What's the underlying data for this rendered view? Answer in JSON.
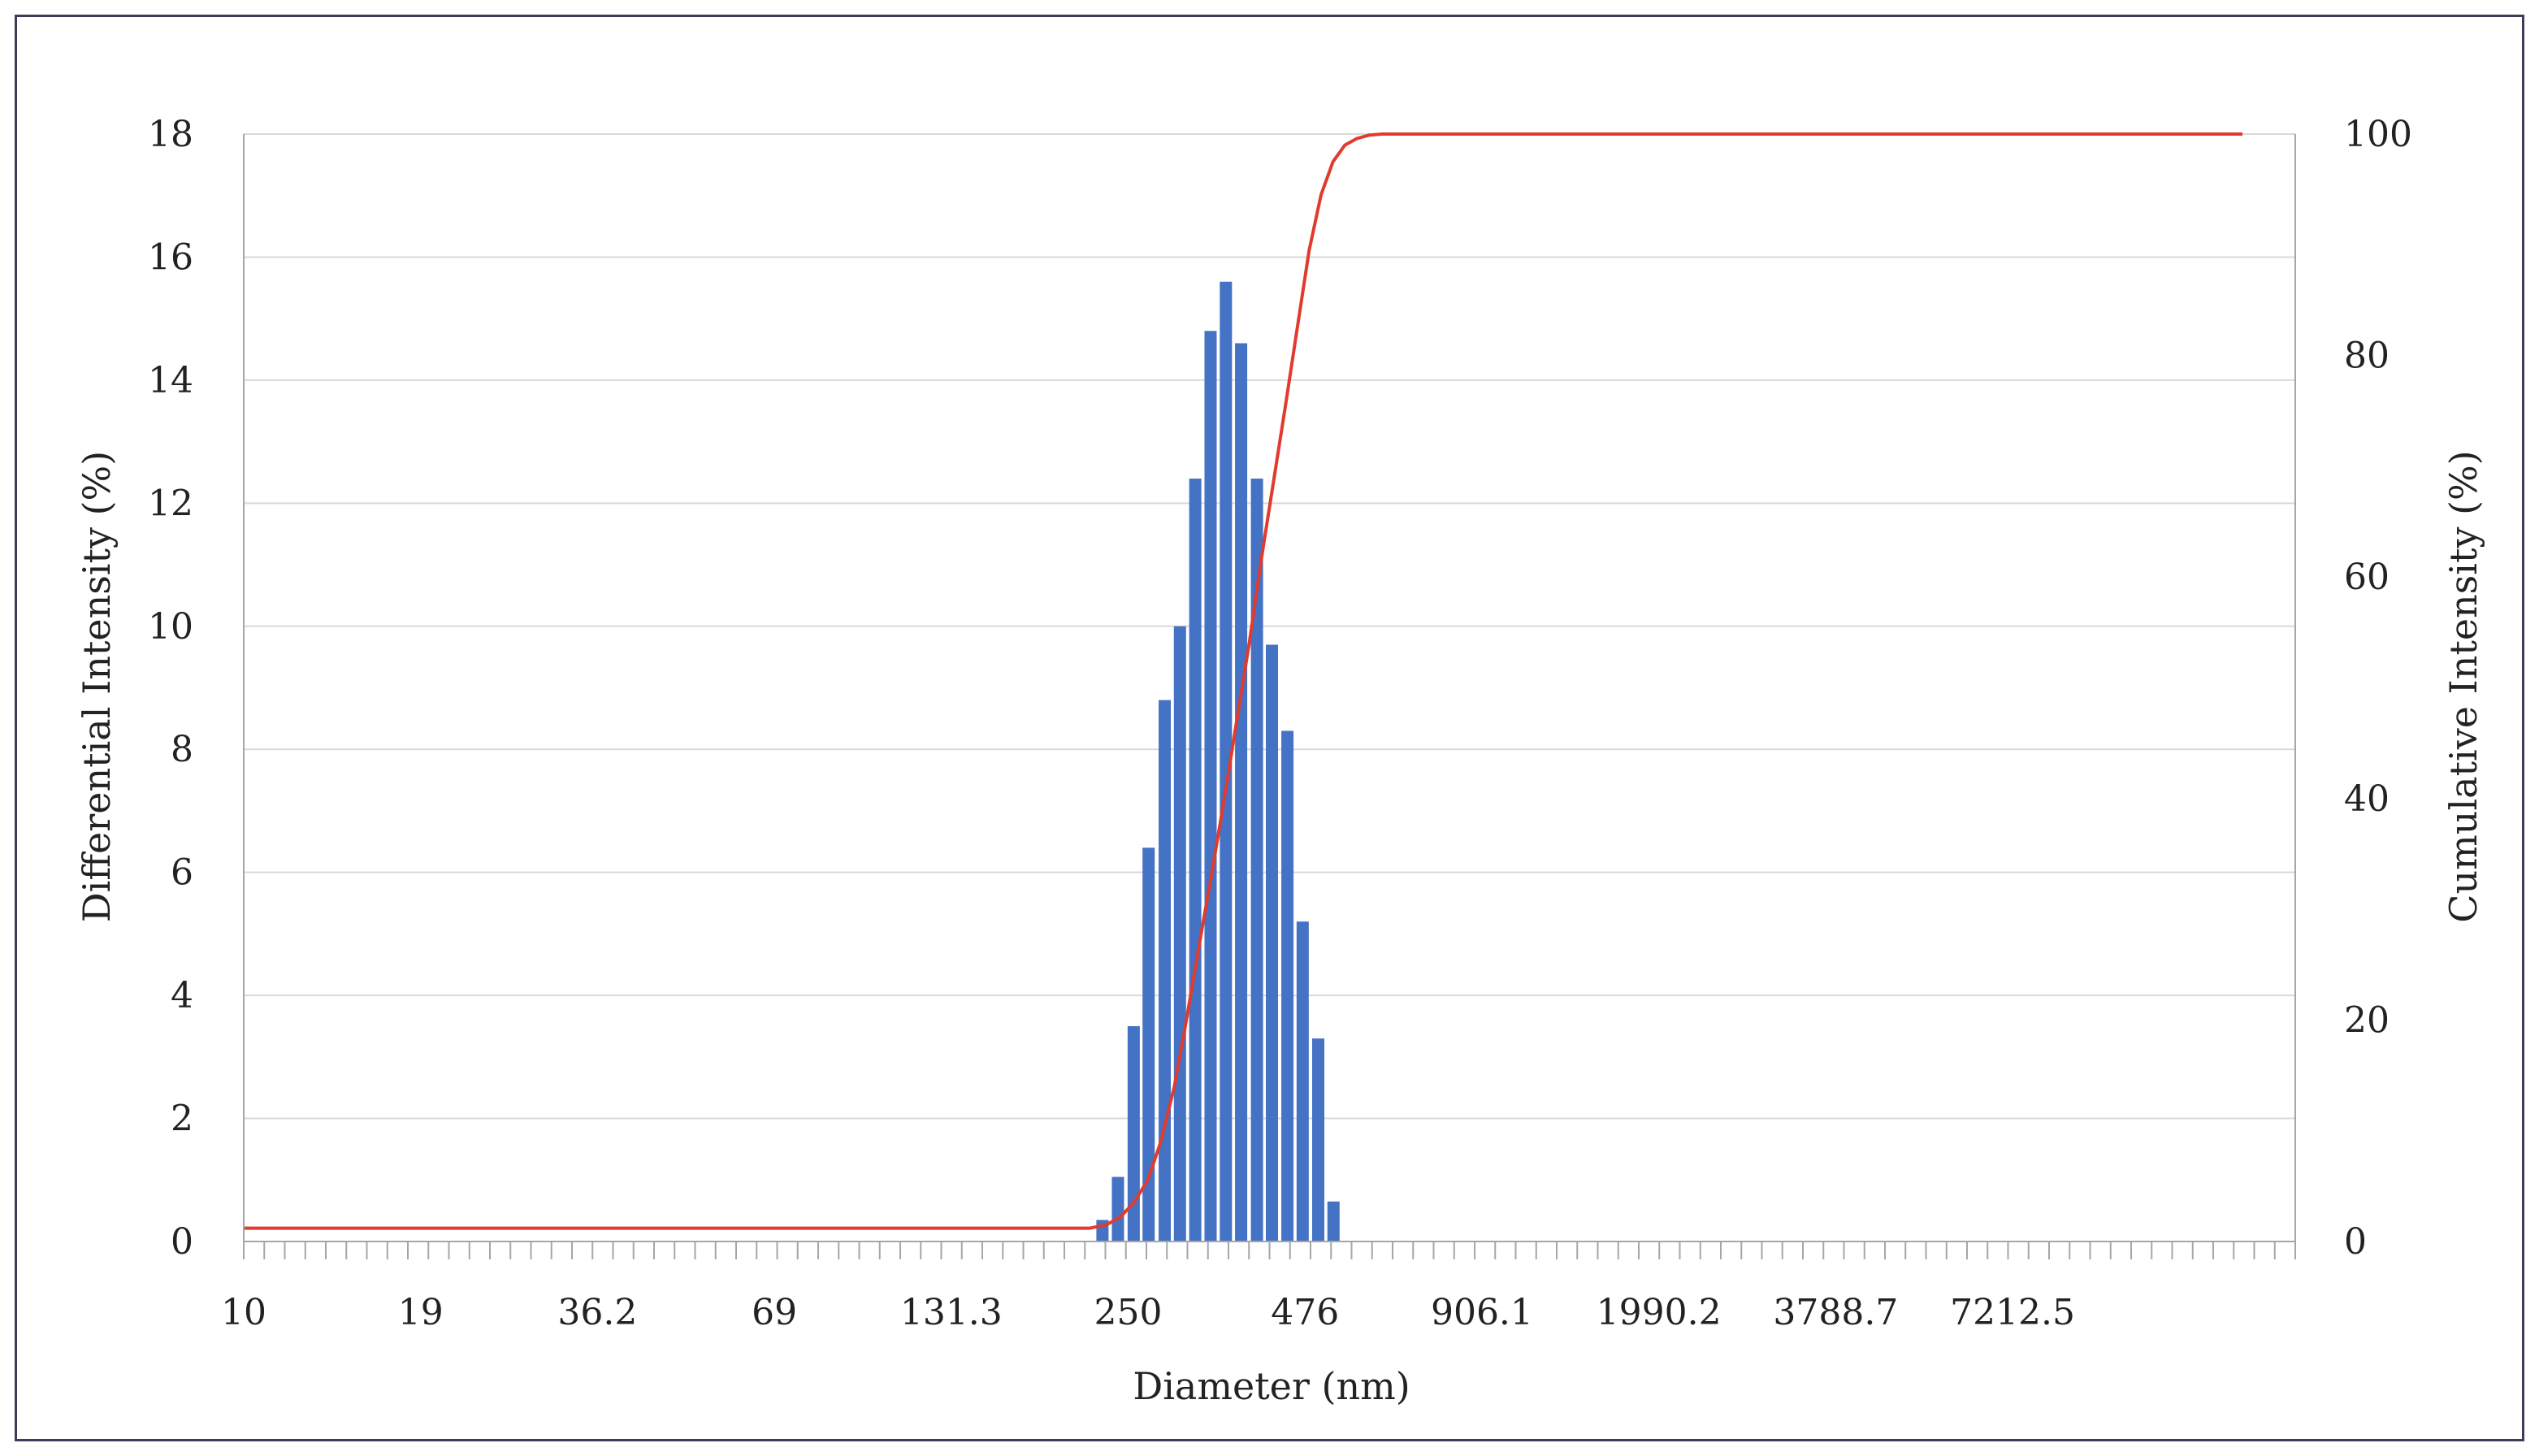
{
  "chart_data": {
    "type": "bar",
    "title": "",
    "xlabel": "Diameter (nm)",
    "ylabel": "Differential Intensity (%)",
    "y2label": "Cumulative Intensity (%)",
    "x_scale": "log",
    "xlim": [
      10,
      17000
    ],
    "ylim": [
      0,
      18
    ],
    "y2lim": [
      0,
      100
    ],
    "x_tick_labels": [
      "10",
      "19",
      "36.2",
      "69",
      "131.3",
      "250",
      "476",
      "906.1",
      "1990.2",
      "3788.7",
      "7212.5"
    ],
    "y_ticks": [
      0,
      2,
      4,
      6,
      8,
      10,
      12,
      14,
      16,
      18
    ],
    "y2_ticks": [
      0,
      20,
      40,
      60,
      80,
      100
    ],
    "grid": true,
    "legend": "none",
    "colors": {
      "bars": "#4472c4",
      "cumulative": "#e03b2e",
      "grid": "#d9d9d9",
      "axis": "#a6a6a6"
    },
    "series": [
      {
        "type": "bar",
        "axis": "left",
        "x": [
          225,
          238,
          252,
          266,
          282,
          298,
          315,
          333,
          352,
          372,
          394,
          416,
          440,
          465,
          492,
          520,
          550
        ],
        "values": [
          0.35,
          1.05,
          3.5,
          6.4,
          8.8,
          10.0,
          12.4,
          14.8,
          15.6,
          14.6,
          12.4,
          9.7,
          8.3,
          5.2,
          3.3,
          0.65,
          0.0
        ]
      },
      {
        "type": "line",
        "axis": "right",
        "x": [
          10,
          215,
          228,
          240,
          252,
          265,
          278,
          292,
          305,
          320,
          335,
          350,
          366,
          383,
          400,
          418,
          437,
          456,
          476,
          497,
          519,
          542,
          566,
          591,
          620,
          650,
          17000
        ],
        "values": [
          1.2,
          1.2,
          1.5,
          2.2,
          3.5,
          5.5,
          9.0,
          14.0,
          20.0,
          27.0,
          33.5,
          40.0,
          47.0,
          54.0,
          61.5,
          68.5,
          75.5,
          82.5,
          89.5,
          94.5,
          97.5,
          99.0,
          99.6,
          99.9,
          100,
          100,
          100
        ]
      }
    ]
  }
}
